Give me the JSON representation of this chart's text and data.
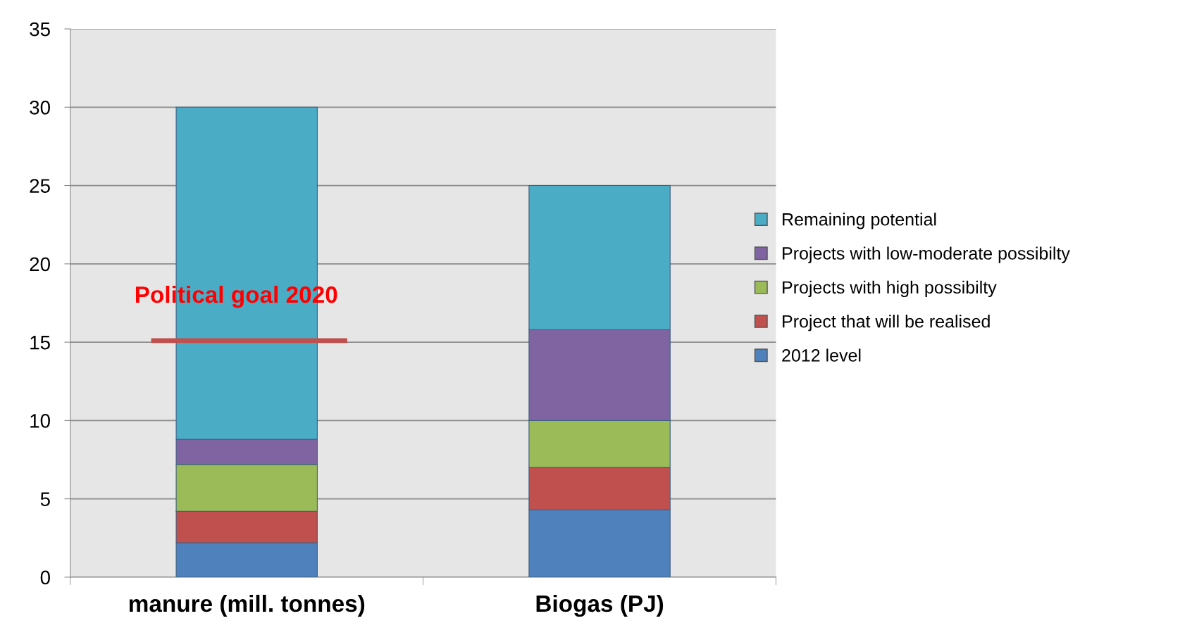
{
  "chart_data": {
    "type": "bar",
    "stacked": true,
    "categories": [
      "manure (mill. tonnes)",
      "Biogas (PJ)"
    ],
    "series": [
      {
        "name": "2012 level",
        "color": "#4f81bd",
        "values": [
          2.2,
          4.3
        ]
      },
      {
        "name": "Project that will be realised",
        "color": "#c0504d",
        "values": [
          2.0,
          2.7
        ]
      },
      {
        "name": "Projects with high possibilty",
        "color": "#9bbb59",
        "values": [
          3.0,
          3.0
        ]
      },
      {
        "name": "Projects with low-moderate possibilty",
        "color": "#8064a2",
        "values": [
          1.6,
          5.8
        ]
      },
      {
        "name": "Remaining potential",
        "color": "#4bacc6",
        "values": [
          21.2,
          9.2
        ]
      }
    ],
    "ylim": [
      0,
      35
    ],
    "yticks": [
      0,
      5,
      10,
      15,
      20,
      25,
      30,
      35
    ],
    "grid": "y",
    "legend": "right",
    "ref_lines": [
      {
        "axis": "y",
        "value": 15.1,
        "label": "Political goal 2020",
        "color": "#c0504d"
      }
    ]
  }
}
